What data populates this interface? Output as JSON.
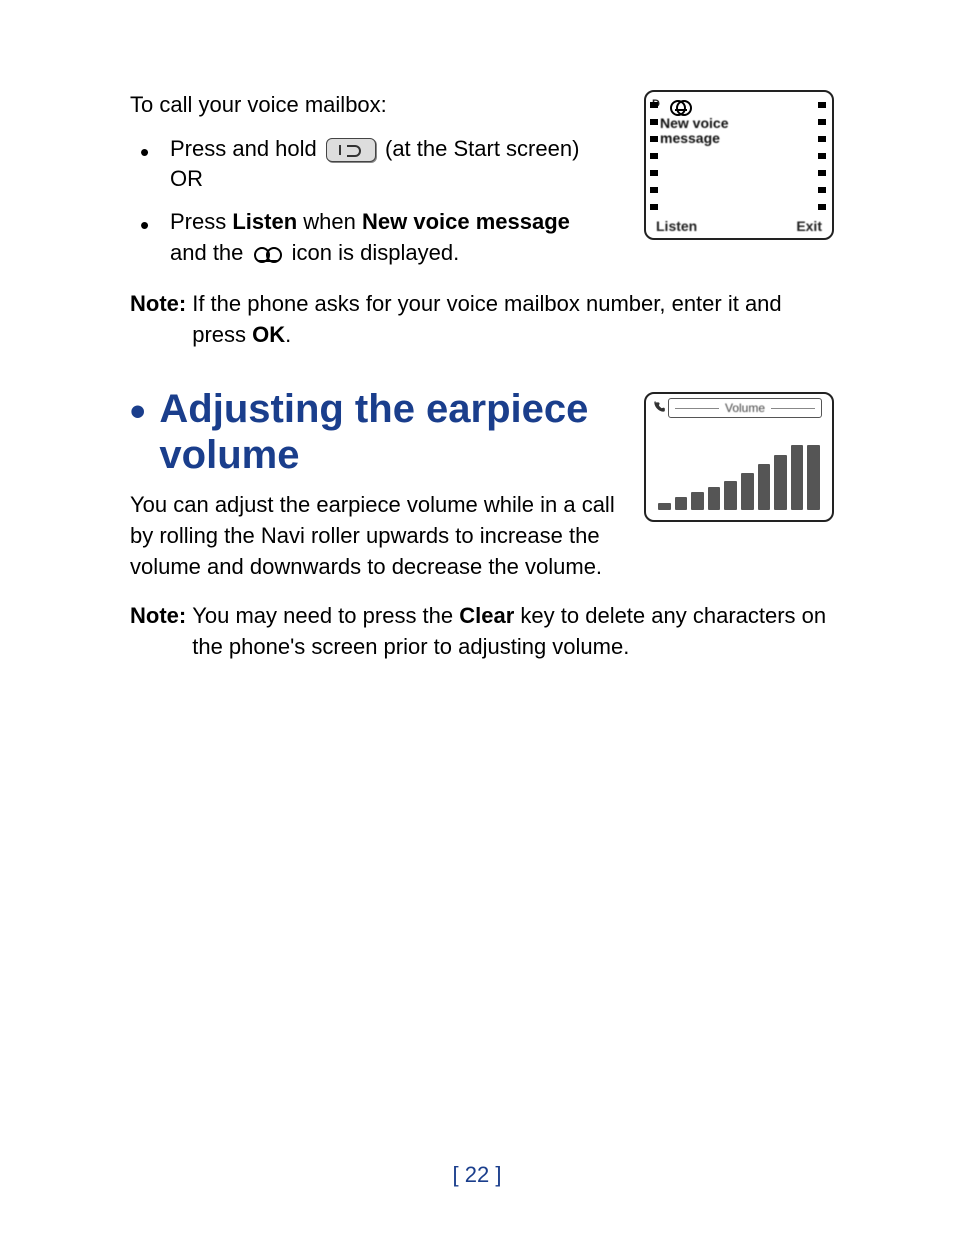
{
  "intro": "To call your voice mailbox:",
  "bullets": [
    {
      "pre": "Press and hold ",
      "post1": " (at the Start screen)",
      "post2": "OR"
    },
    {
      "t1": "Press ",
      "b1": "Listen",
      "t2": " when ",
      "b2": "New voice message",
      "t3": " and the ",
      "t4": " icon is displayed."
    }
  ],
  "note1": {
    "label": "Note:",
    "body_a": "If the phone asks for your voice mailbox number, enter it and press ",
    "body_bold": "OK",
    "body_b": "."
  },
  "heading": "Adjusting the earpiece volume",
  "para": "You can adjust the earpiece volume while in a call by rolling the Navi roller upwards to increase the volume and downwards to decrease the volume.",
  "note2": {
    "label": "Note:",
    "body_a": "You may need to press the ",
    "body_bold": "Clear",
    "body_b": " key to delete any characters on the phone's screen prior to adjusting volume."
  },
  "lcd1": {
    "msg_line1": "New voice",
    "msg_line2": "message",
    "left_btn": "Listen",
    "right_btn": "Exit",
    "ant_label": "D"
  },
  "lcd2": {
    "title": "Volume",
    "bar_heights_pct": [
      12,
      20,
      28,
      36,
      46,
      58,
      72,
      86,
      100,
      100
    ]
  },
  "colors": {
    "accent": "#1a3e8c",
    "text": "#000000",
    "bg": "#ffffff",
    "lcd_bar": "#555555"
  },
  "page_number": "[ 22 ]"
}
